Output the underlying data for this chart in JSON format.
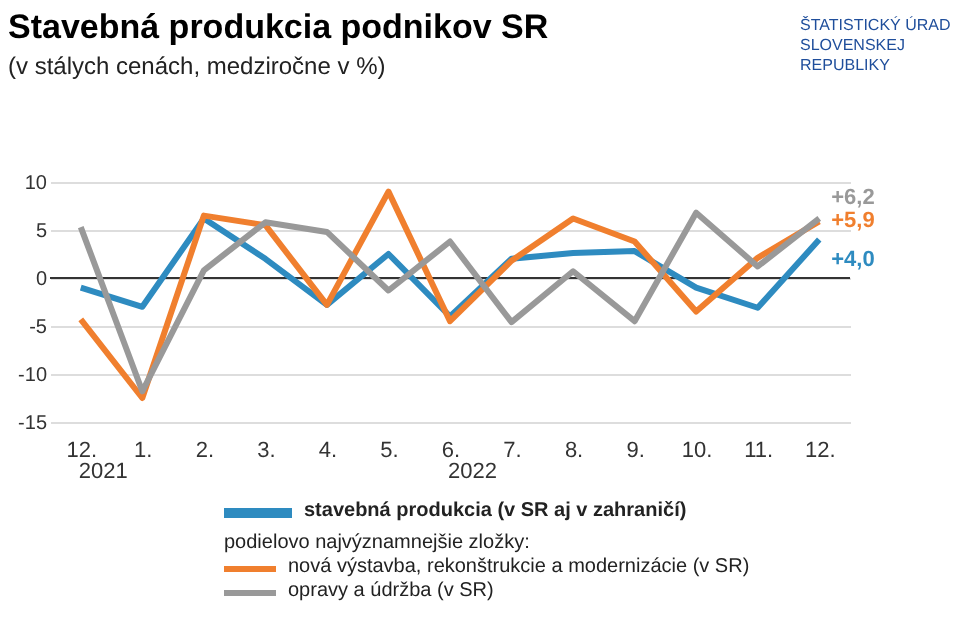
{
  "chart_data": {
    "type": "line",
    "title": "Stavebná produkcia podnikov SR",
    "subtitle": "(v stálych cenách, medziročne v %)",
    "categories": [
      "12.",
      "1.",
      "2.",
      "3.",
      "4.",
      "5.",
      "6.",
      "7.",
      "8.",
      "9.",
      "10.",
      "11.",
      "12."
    ],
    "series": [
      {
        "name": "stavebná produkcia (v SR aj v zahraničí)",
        "color": "#2e8bc0",
        "values": [
          -1,
          -3,
          6.2,
          2,
          -2.8,
          2.5,
          -4,
          2,
          2.6,
          2.8,
          -1,
          -3.1,
          4.0
        ],
        "value_labels": [
          null,
          null,
          null,
          null,
          null,
          null,
          null,
          null,
          null,
          null,
          null,
          null,
          "+4,0"
        ]
      },
      {
        "name": "nová výstavba, rekonštrukcie a modernizácie (v SR)",
        "color": "#f07f2e",
        "values": [
          -4.3,
          -12.5,
          6.5,
          5.5,
          -2.8,
          9,
          -4.5,
          1.8,
          6.2,
          3.8,
          -3.5,
          2.1,
          5.9
        ],
        "value_labels": [
          null,
          null,
          null,
          null,
          null,
          null,
          null,
          null,
          null,
          null,
          null,
          null,
          "+5,9"
        ]
      },
      {
        "name": "opravy a údržba (v SR)",
        "color": "#999999",
        "values": [
          5.3,
          -11.8,
          0.8,
          5.8,
          4.8,
          -1.3,
          3.8,
          -4.6,
          0.7,
          -4.5,
          6.8,
          1.2,
          6.2
        ],
        "value_labels": [
          null,
          null,
          null,
          null,
          null,
          null,
          null,
          null,
          null,
          null,
          null,
          null,
          "+6,2"
        ]
      }
    ],
    "ylim": [
      -15,
      10
    ],
    "yticks": [
      -15,
      -10,
      -5,
      0,
      5,
      10
    ],
    "grid": "y",
    "legend": "bottom",
    "ref_lines": [
      {
        "axis": "y",
        "value": 0,
        "color": "#333333"
      }
    ],
    "annotations": [
      "2021",
      "2022",
      "podielovo najvýznamnejšie zložky:",
      "ŠTATISTICKÝ ÚRAD SLOVENSKEJ REPUBLIKY"
    ]
  }
}
